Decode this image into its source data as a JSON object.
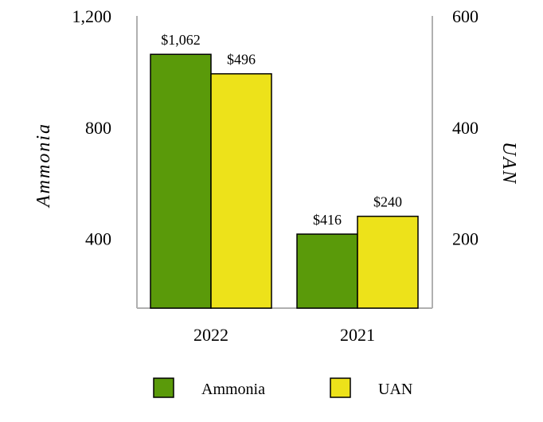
{
  "chart_data": {
    "type": "bar",
    "categories": [
      "2022",
      "2021"
    ],
    "series": [
      {
        "name": "Ammonia",
        "values": [
          1062,
          416
        ],
        "labels": [
          "$1,062",
          "$416"
        ],
        "axis": "left",
        "color": "#5a9a0a"
      },
      {
        "name": "UAN",
        "values": [
          496,
          240
        ],
        "labels": [
          "$496",
          "$240"
        ],
        "axis": "right",
        "color": "#ede21a"
      }
    ],
    "ylabel_left": "Ammonia",
    "ylabel_right": "UAN",
    "ylim_left": [
      150,
      1200
    ],
    "ylim_right": [
      75,
      600
    ],
    "yticks_left": [
      400,
      800,
      1200
    ],
    "yticks_left_labels": [
      "400",
      "800",
      "1,200"
    ],
    "yticks_right": [
      200,
      400,
      600
    ],
    "yticks_right_labels": [
      "200",
      "400",
      "600"
    ],
    "grid": false,
    "legend_position": "bottom"
  }
}
